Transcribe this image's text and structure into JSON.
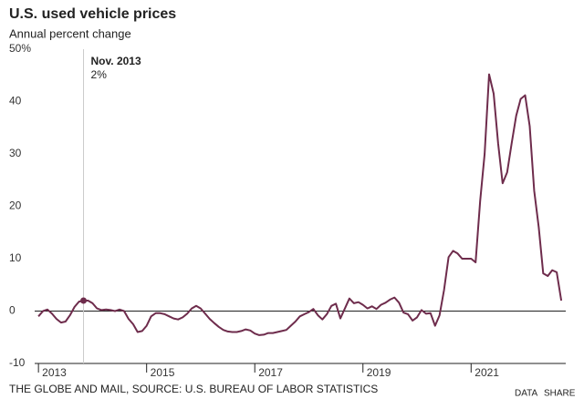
{
  "chart_data": {
    "type": "line",
    "title": "U.S. used vehicle prices",
    "subtitle": "Annual percent change",
    "source": "THE GLOBE AND MAIL, SOURCE: U.S. BUREAU OF LABOR STATISTICS",
    "buttons": [
      "DATA",
      "SHARE"
    ],
    "annotation": {
      "title": "Nov. 2013",
      "label": "2%",
      "x": 2013.833,
      "value": 2
    },
    "xlim": [
      2012.93,
      2022.75
    ],
    "xticks": [
      2013,
      2015,
      2017,
      2019,
      2021
    ],
    "ylim": [
      -10,
      50
    ],
    "yticks": [
      -10,
      0,
      10,
      20,
      30,
      40,
      {
        "value": 50,
        "label": "50%"
      }
    ],
    "grid": false,
    "x": [
      2013,
      2013.083,
      2013.167,
      2013.25,
      2013.333,
      2013.417,
      2013.5,
      2013.583,
      2013.667,
      2013.75,
      2013.833,
      2013.917,
      2014,
      2014.083,
      2014.167,
      2014.25,
      2014.333,
      2014.417,
      2014.5,
      2014.583,
      2014.667,
      2014.75,
      2014.833,
      2014.917,
      2015,
      2015.083,
      2015.167,
      2015.25,
      2015.333,
      2015.417,
      2015.5,
      2015.583,
      2015.667,
      2015.75,
      2015.833,
      2015.917,
      2016,
      2016.083,
      2016.167,
      2016.25,
      2016.333,
      2016.417,
      2016.5,
      2016.583,
      2016.667,
      2016.75,
      2016.833,
      2016.917,
      2017,
      2017.083,
      2017.167,
      2017.25,
      2017.333,
      2017.417,
      2017.5,
      2017.583,
      2017.667,
      2017.75,
      2017.833,
      2017.917,
      2018,
      2018.083,
      2018.167,
      2018.25,
      2018.333,
      2018.417,
      2018.5,
      2018.583,
      2018.667,
      2018.75,
      2018.833,
      2018.917,
      2019,
      2019.083,
      2019.167,
      2019.25,
      2019.333,
      2019.417,
      2019.5,
      2019.583,
      2019.667,
      2019.75,
      2019.833,
      2019.917,
      2020,
      2020.083,
      2020.167,
      2020.25,
      2020.333,
      2020.417,
      2020.5,
      2020.583,
      2020.667,
      2020.75,
      2020.833,
      2020.917,
      2021,
      2021.083,
      2021.167,
      2021.25,
      2021.333,
      2021.417,
      2021.5,
      2021.583,
      2021.667,
      2021.75,
      2021.833,
      2021.917,
      2022,
      2022.083,
      2022.167,
      2022.25,
      2022.333,
      2022.417,
      2022.5,
      2022.583,
      2022.667
    ],
    "series": [
      {
        "name": "Used vehicle prices",
        "color": "#6e2c4c",
        "values": [
          -1,
          0,
          0.3,
          -0.5,
          -1.5,
          -2.2,
          -2,
          -0.8,
          0.8,
          1.8,
          2,
          2,
          1.5,
          0.5,
          0.2,
          0.3,
          0.2,
          0,
          0.3,
          0,
          -1.5,
          -2.5,
          -4,
          -3.8,
          -2.8,
          -1,
          -0.4,
          -0.4,
          -0.6,
          -1,
          -1.4,
          -1.6,
          -1.2,
          -0.5,
          0.5,
          1,
          0.5,
          -0.5,
          -1.5,
          -2.3,
          -3,
          -3.6,
          -3.9,
          -4,
          -4,
          -3.8,
          -3.5,
          -3.7,
          -4.3,
          -4.6,
          -4.5,
          -4.2,
          -4.2,
          -4,
          -3.8,
          -3.6,
          -2.8,
          -2,
          -1,
          -0.6,
          -0.2,
          0.4,
          -0.8,
          -1.6,
          -0.6,
          1,
          1.4,
          -1.4,
          0.5,
          2.4,
          1.5,
          1.7,
          1.2,
          0.5,
          0.9,
          0.4,
          1.2,
          1.6,
          2.2,
          2.6,
          1.6,
          -0.3,
          -0.6,
          -1.8,
          -1.2,
          0.2,
          -0.5,
          -0.4,
          -2.8,
          -0.8,
          4,
          10.3,
          11.5,
          11,
          10,
          10,
          10,
          9.3,
          21,
          30,
          45.2,
          41.5,
          32,
          24.4,
          26.5,
          32,
          37.3,
          40.5,
          41.2,
          35.3,
          23,
          16,
          7.2,
          6.7,
          7.8,
          7.4,
          2
        ]
      }
    ]
  }
}
